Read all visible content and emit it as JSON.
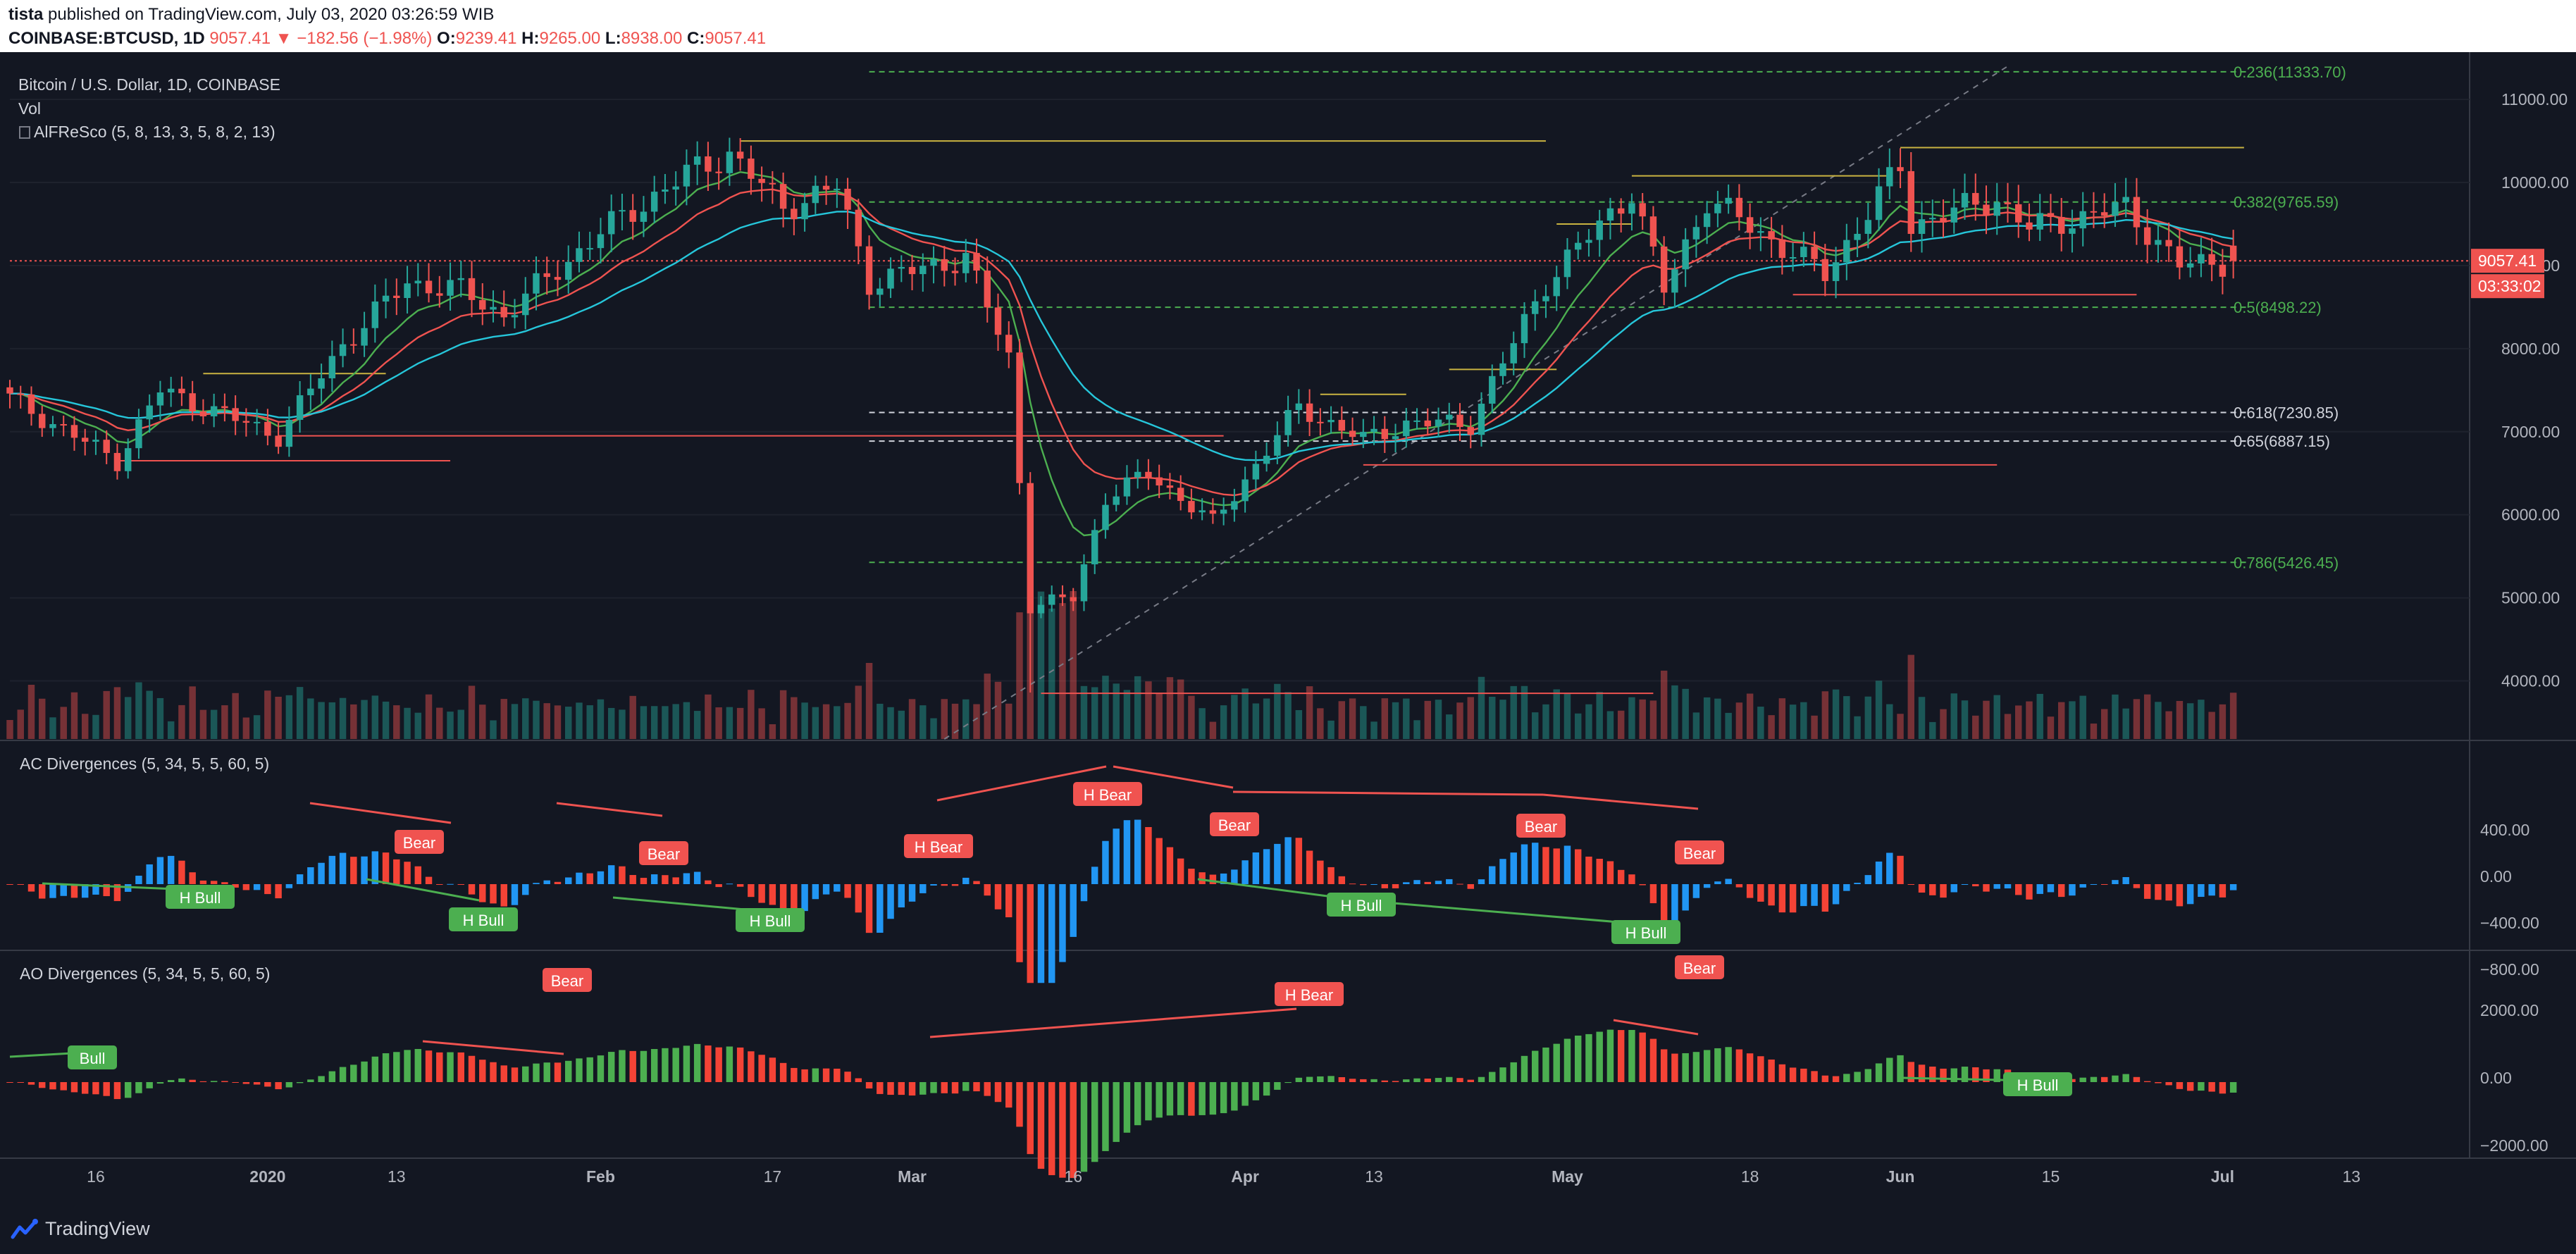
{
  "header": {
    "line1_user": "tista",
    "line1_rest": " published on TradingView.com, July 03, 2020 03:26:59 WIB",
    "symbol": "COINBASE:BTCUSD, 1D",
    "last": "9057.41",
    "change_arrow": "▼",
    "change": "−182.56 (−1.98%)",
    "open_label": "O:",
    "open": "9239.41",
    "high_label": "H:",
    "high": "9265.00",
    "low_label": "L:",
    "low": "8938.00",
    "close_label": "C:",
    "close": "9057.41"
  },
  "legend": {
    "title": "Bitcoin / U.S. Dollar, 1D, COINBASE",
    "vol": "Vol",
    "indicator": "AlFReSco (5, 8, 13, 3, 5, 8, 2, 13)"
  },
  "price_axis": {
    "ticks": [
      "11000.00",
      "10000.00",
      "9000.00",
      "8000.00",
      "7000.00",
      "6000.00",
      "5000.00",
      "4000.00"
    ],
    "current_price": "9057.41",
    "countdown": "03:33:02"
  },
  "fib_levels": [
    {
      "label": "0.236(11333.70)",
      "value": 11333.7,
      "dashed_color": "green"
    },
    {
      "label": "0.382(9765.59)",
      "value": 9765.59,
      "dashed_color": "green"
    },
    {
      "label": "0.5(8498.22)",
      "value": 8498.22,
      "dashed_color": "green"
    },
    {
      "label": "0.618(7230.85)",
      "value": 7230.85,
      "dashed_color": "white"
    },
    {
      "label": "0.65(6887.15)",
      "value": 6887.15,
      "dashed_color": "white"
    },
    {
      "label": "0.786(5426.45)",
      "value": 5426.45,
      "dashed_color": "green"
    }
  ],
  "x_axis": {
    "ticks": [
      "16",
      "2020",
      "13",
      "Feb",
      "17",
      "Mar",
      "16",
      "Apr",
      "13",
      "May",
      "18",
      "Jun",
      "15",
      "Jul",
      "13"
    ]
  },
  "ac_panel": {
    "title": "AC Divergences (5, 34, 5, 5, 60, 5)",
    "ticks": [
      "400.00",
      "0.00",
      "−400.00",
      "−800.00"
    ],
    "labels": [
      "H Bull",
      "Bear",
      "H Bull",
      "Bear",
      "H Bull",
      "H Bear",
      "H Bear",
      "Bear",
      "H Bull",
      "Bear",
      "H Bull",
      "Bear"
    ]
  },
  "ao_panel": {
    "title": "AO Divergences (5, 34, 5, 5, 60, 5)",
    "ticks": [
      "2000.00",
      "0.00",
      "−2000.00"
    ],
    "labels": [
      "Bull",
      "Bear",
      "H Bear",
      "Bear",
      "H Bull"
    ]
  },
  "footer": {
    "brand": "TradingView"
  },
  "colors": {
    "bg": "#131722",
    "up": "#26a69a",
    "down": "#ef5350",
    "grid": "#1e222d",
    "blue": "#2196f3",
    "green": "#4caf50",
    "red": "#f44336",
    "ema_green": "#4caf50",
    "ema_red": "#ef5350",
    "ema_blue": "#26c6da"
  },
  "chart_data": {
    "type": "candlestick",
    "title": "Bitcoin / U.S. Dollar, 1D, COINBASE",
    "ylim": [
      3300,
      11400
    ],
    "x_range_dates": [
      "2019-12-08",
      "2020-07-24"
    ],
    "price_anchors": [
      {
        "date": "2019-12-08",
        "close": 7400
      },
      {
        "date": "2019-12-18",
        "close": 6650
      },
      {
        "date": "2019-12-22",
        "close": 7500
      },
      {
        "date": "2020-01-02",
        "close": 6950
      },
      {
        "date": "2020-01-08",
        "close": 8050
      },
      {
        "date": "2020-01-14",
        "close": 8800
      },
      {
        "date": "2020-01-19",
        "close": 8700
      },
      {
        "date": "2020-01-23",
        "close": 8400
      },
      {
        "date": "2020-02-01",
        "close": 9400
      },
      {
        "date": "2020-02-09",
        "close": 10100
      },
      {
        "date": "2020-02-13",
        "close": 10350
      },
      {
        "date": "2020-02-18",
        "close": 9700
      },
      {
        "date": "2020-02-23",
        "close": 9950
      },
      {
        "date": "2020-02-26",
        "close": 8800
      },
      {
        "date": "2020-03-06",
        "close": 9100
      },
      {
        "date": "2020-03-10",
        "close": 7900
      },
      {
        "date": "2020-03-12",
        "close": 4900
      },
      {
        "date": "2020-03-16",
        "close": 5000
      },
      {
        "date": "2020-03-19",
        "close": 6200
      },
      {
        "date": "2020-03-23",
        "close": 6500
      },
      {
        "date": "2020-03-29",
        "close": 5900
      },
      {
        "date": "2020-04-06",
        "close": 7300
      },
      {
        "date": "2020-04-12",
        "close": 6900
      },
      {
        "date": "2020-04-16",
        "close": 7100
      },
      {
        "date": "2020-04-22",
        "close": 7100
      },
      {
        "date": "2020-04-29",
        "close": 8800
      },
      {
        "date": "2020-05-07",
        "close": 9900
      },
      {
        "date": "2020-05-10",
        "close": 8700
      },
      {
        "date": "2020-05-14",
        "close": 9800
      },
      {
        "date": "2020-05-25",
        "close": 8900
      },
      {
        "date": "2020-06-01",
        "close": 10200
      },
      {
        "date": "2020-06-02",
        "close": 9500
      },
      {
        "date": "2020-06-10",
        "close": 9800
      },
      {
        "date": "2020-06-13",
        "close": 9450
      },
      {
        "date": "2020-06-22",
        "close": 9700
      },
      {
        "date": "2020-06-27",
        "close": 9000
      },
      {
        "date": "2020-07-02",
        "close": 9057.41
      }
    ]
  }
}
